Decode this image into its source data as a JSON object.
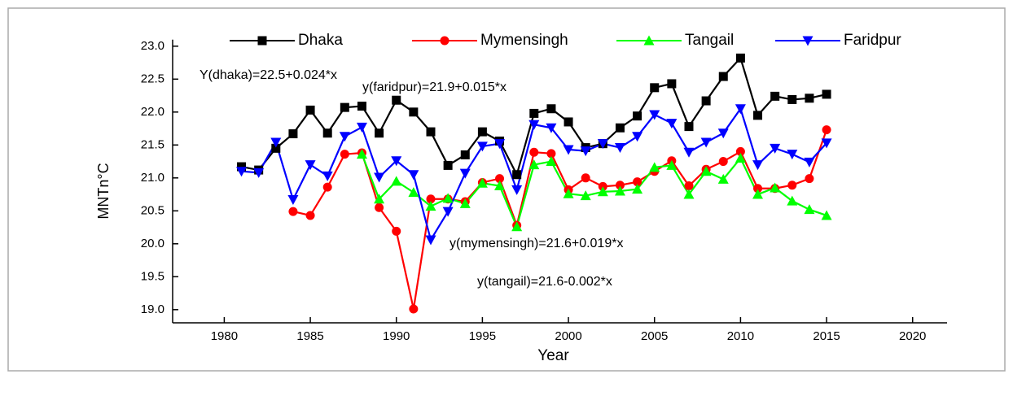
{
  "chart_data": {
    "type": "line",
    "x_label": "Year",
    "y_label": "MNTn°C",
    "x": [
      1981,
      1982,
      1983,
      1984,
      1985,
      1986,
      1987,
      1988,
      1989,
      1990,
      1991,
      1992,
      1993,
      1994,
      1995,
      1996,
      1997,
      1998,
      1999,
      2000,
      2001,
      2002,
      2003,
      2004,
      2005,
      2006,
      2007,
      2008,
      2009,
      2010,
      2011,
      2012,
      2013,
      2014,
      2015
    ],
    "series": [
      {
        "name": "Dhaka",
        "color": "#000000",
        "marker": "square",
        "values": [
          21.17,
          21.12,
          21.45,
          21.67,
          22.03,
          21.68,
          22.07,
          22.09,
          21.68,
          22.18,
          22.0,
          21.7,
          21.19,
          21.35,
          21.7,
          21.56,
          21.05,
          21.98,
          22.05,
          21.85,
          21.46,
          21.52,
          21.76,
          21.94,
          22.37,
          22.43,
          21.78,
          22.17,
          22.54,
          22.82,
          21.95,
          22.24,
          22.19,
          22.21,
          22.27
        ]
      },
      {
        "name": "Mymensingh",
        "color": "#ff0000",
        "marker": "circle",
        "values": [
          null,
          null,
          null,
          20.49,
          20.43,
          20.86,
          21.36,
          21.38,
          20.55,
          20.19,
          19.01,
          20.68,
          20.68,
          20.64,
          20.93,
          20.99,
          20.28,
          21.39,
          21.37,
          20.82,
          21.0,
          20.87,
          20.89,
          20.94,
          21.1,
          21.26,
          20.88,
          21.13,
          21.25,
          21.4,
          20.84,
          20.84,
          20.89,
          20.99,
          21.73
        ]
      },
      {
        "name": "Tangail",
        "color": "#00ff00",
        "marker": "triangle-up",
        "values": [
          null,
          null,
          null,
          null,
          null,
          null,
          null,
          21.36,
          20.68,
          20.95,
          20.78,
          20.57,
          20.69,
          20.61,
          20.92,
          20.88,
          20.26,
          21.2,
          21.25,
          20.76,
          20.73,
          20.79,
          20.8,
          20.83,
          21.16,
          21.19,
          20.75,
          21.1,
          20.98,
          21.3,
          20.75,
          20.85,
          20.65,
          20.52,
          20.43
        ]
      },
      {
        "name": "Faridpur",
        "color": "#0000ff",
        "marker": "triangle-down",
        "values": [
          21.1,
          21.08,
          21.54,
          20.67,
          21.2,
          21.03,
          21.63,
          21.77,
          21.01,
          21.26,
          21.05,
          20.06,
          20.49,
          21.07,
          21.48,
          21.52,
          20.82,
          21.81,
          21.76,
          21.43,
          21.41,
          21.52,
          21.46,
          21.63,
          21.96,
          21.83,
          21.39,
          21.54,
          21.68,
          22.05,
          21.2,
          21.45,
          21.36,
          21.24,
          21.53
        ]
      }
    ],
    "annotations": [
      "Y(dhaka)=22.5+0.024*x",
      "y(faridpur)=21.9+0.015*x",
      "y(mymensingh)=21.6+0.019*x",
      "y(tangail)=21.6-0.002*x"
    ],
    "xlim": [
      1977,
      2022
    ],
    "xticks": [
      1980,
      1985,
      1990,
      1995,
      2000,
      2005,
      2010,
      2015,
      2020
    ],
    "ylim": [
      18.8,
      23.1
    ],
    "yticks": [
      {
        "value": 19,
        "label": "19.0"
      },
      {
        "value": 19.5,
        "label": "19.5"
      },
      {
        "value": 20,
        "label": "20.0"
      },
      {
        "value": 20.5,
        "label": "20.5"
      },
      {
        "value": 21,
        "label": "21.0"
      },
      {
        "value": 21.5,
        "label": "21.5"
      },
      {
        "value": 22,
        "label": "22.0"
      },
      {
        "value": 22.5,
        "label": "22.5"
      },
      {
        "value": 23,
        "label": "23.0"
      }
    ],
    "grid": false,
    "legend": "top"
  }
}
